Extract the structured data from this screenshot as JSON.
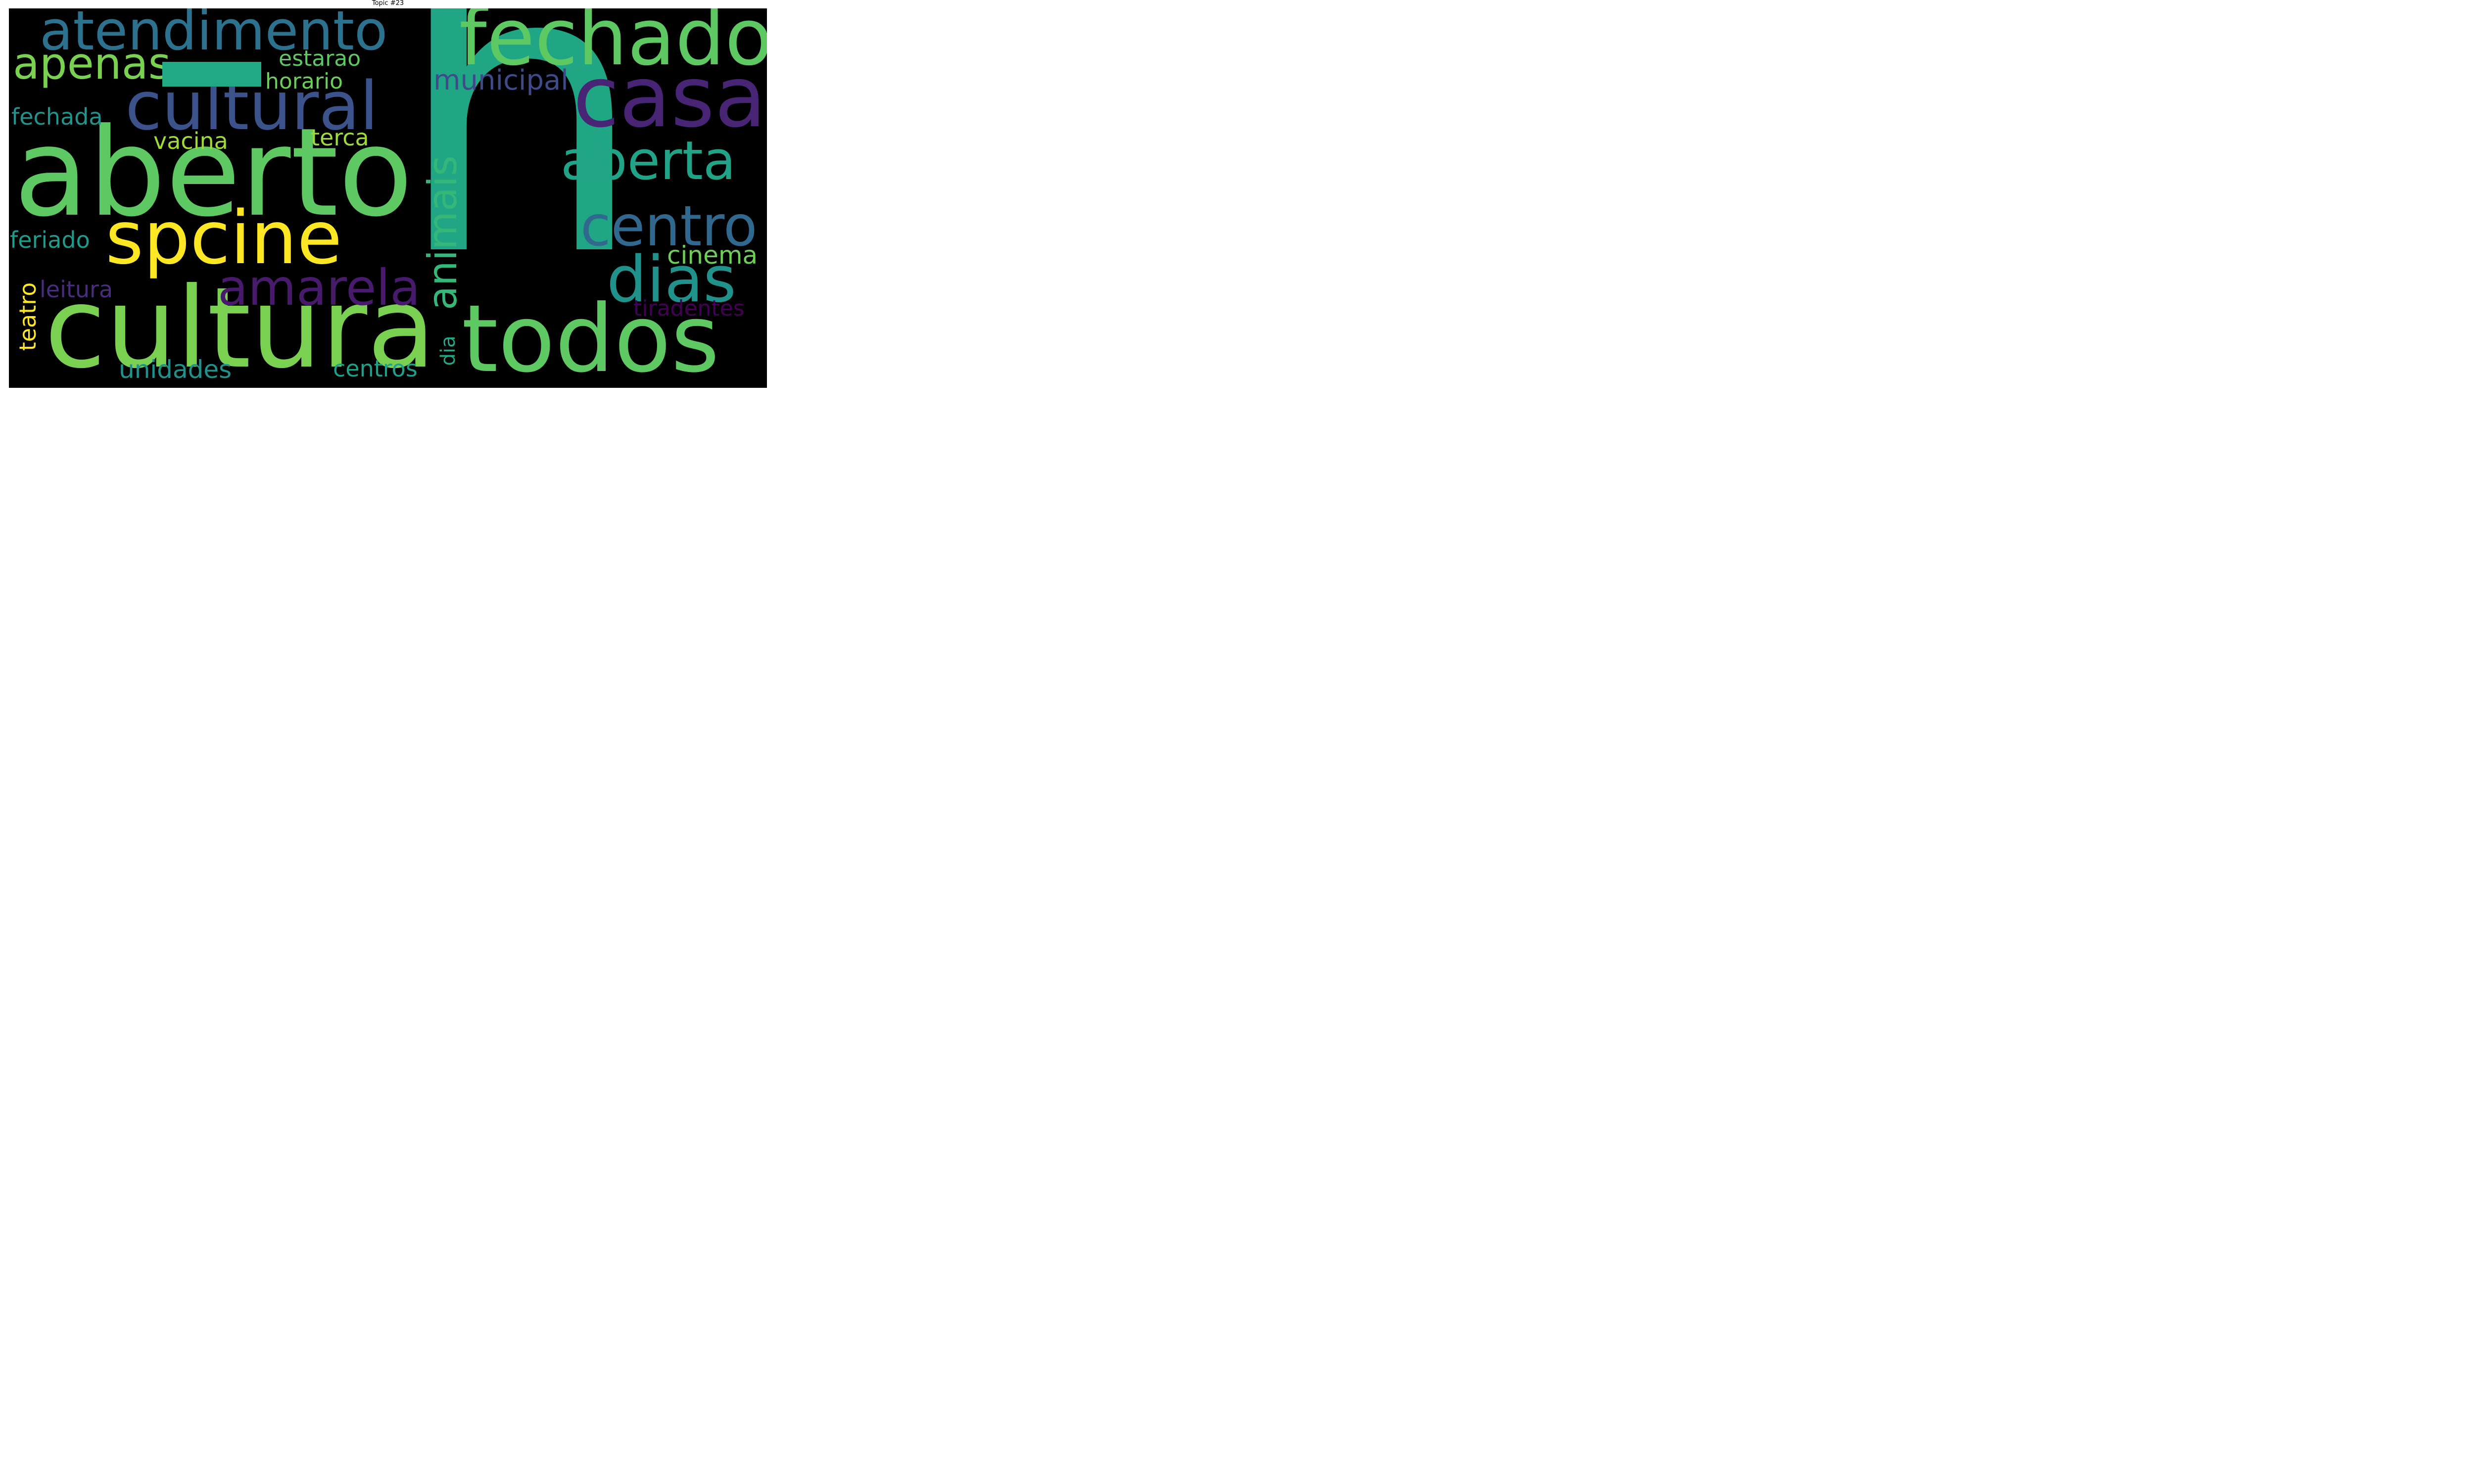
{
  "title": "Topic #23",
  "words": {
    "h": {
      "text": "h",
      "color": "#21a685"
    },
    "aberto": {
      "text": "aberto",
      "color": "#5ec962"
    },
    "cultura": {
      "text": "cultura",
      "color": "#7ad151"
    },
    "fechado": {
      "text": "fechado",
      "color": "#5ec962"
    },
    "atendimento": {
      "text": "atendimento",
      "color": "#2c728e"
    },
    "casa": {
      "text": "casa",
      "color": "#482475"
    },
    "cultural": {
      "text": "cultural",
      "color": "#3b528b"
    },
    "todos": {
      "text": "todos",
      "color": "#5ec962"
    },
    "spcine": {
      "text": "spcine",
      "color": "#fde725"
    },
    "centro": {
      "text": "centro",
      "color": "#31688e"
    },
    "aberta": {
      "text": "aberta",
      "color": "#20a386"
    },
    "dias": {
      "text": "dias",
      "color": "#21918c"
    },
    "animais": {
      "text": "animais",
      "color": "#35b779"
    },
    "amarela": {
      "text": "amarela",
      "color": "#481a6c"
    },
    "apenas": {
      "text": "apenas",
      "color": "#7ad151"
    },
    "municipal": {
      "text": "municipal",
      "color": "#3e4a89"
    },
    "estarao": {
      "text": "estarao",
      "color": "#5ec962"
    },
    "horario": {
      "text": "horario",
      "color": "#6ccd5a"
    },
    "fechada": {
      "text": "fechada",
      "color": "#1f948c"
    },
    "vacina": {
      "text": "vacina",
      "color": "#a0da39"
    },
    "terca": {
      "text": "terca",
      "color": "#a0da39"
    },
    "feriado": {
      "text": "feriado",
      "color": "#1e9b8a"
    },
    "cinema": {
      "text": "cinema",
      "color": "#6ece58"
    },
    "teatro": {
      "text": "teatro",
      "color": "#fde725"
    },
    "leitura": {
      "text": "leitura",
      "color": "#472d7b"
    },
    "tiradentes": {
      "text": "tiradentes",
      "color": "#440154"
    },
    "dia": {
      "text": "dia",
      "color": "#22a884"
    },
    "unidades": {
      "text": "unidades",
      "color": "#21918c"
    },
    "centros": {
      "text": "centros",
      "color": "#1fa088"
    }
  },
  "dash": {
    "color": "#22a884"
  }
}
